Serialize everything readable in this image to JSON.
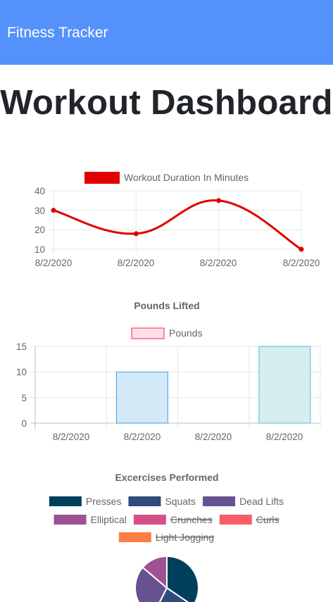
{
  "navbar": {
    "brand": "Fitness Tracker"
  },
  "page": {
    "title": "Workout Dashboard"
  },
  "colors": {
    "navbar": "#5591fb",
    "duration_line": "#e00000",
    "pounds_border": "#4bc0c0",
    "pounds_fill": "#d5eef2",
    "pounds_alt_border": "#36a2eb",
    "pounds_alt_fill": "#d4e9f8",
    "pounds_legend_border": "#ff6384",
    "pounds_legend_fill": "#ffe0e6"
  },
  "chart_data": [
    {
      "type": "line",
      "title": "",
      "x": [
        "8/2/2020",
        "8/2/2020",
        "8/2/2020",
        "8/2/2020"
      ],
      "series": [
        {
          "name": "Workout Duration In Minutes",
          "values": [
            30,
            18,
            35,
            10
          ]
        }
      ],
      "yticks": [
        40,
        30,
        20,
        10
      ],
      "ylim": [
        10,
        40
      ],
      "grid": true,
      "legend": "top"
    },
    {
      "type": "bar",
      "title": "Pounds Lifted",
      "categories": [
        "8/2/2020",
        "8/2/2020",
        "8/2/2020",
        "8/2/2020"
      ],
      "series": [
        {
          "name": "Pounds",
          "values": [
            0,
            10,
            0,
            15
          ]
        }
      ],
      "yticks": [
        15,
        10,
        5,
        0
      ],
      "ylim": [
        0,
        15
      ],
      "grid": true,
      "legend": "top"
    },
    {
      "type": "pie",
      "title": "Excercises Performed",
      "legend": "top",
      "labels": [
        {
          "name": "Presses",
          "color": "#003f5c",
          "hidden": false
        },
        {
          "name": "Squats",
          "color": "#2f4b7c",
          "hidden": false
        },
        {
          "name": "Dead Lifts",
          "color": "#665191",
          "hidden": false
        },
        {
          "name": "Elliptical",
          "color": "#a05195",
          "hidden": false
        },
        {
          "name": "Crunches",
          "color": "#d45087",
          "hidden": true
        },
        {
          "name": "Curls",
          "color": "#f95d6a",
          "hidden": true
        },
        {
          "name": "Light Jogging",
          "color": "#ff7c43",
          "hidden": true
        }
      ],
      "values": [
        30,
        20,
        25,
        12,
        0,
        0,
        0
      ]
    }
  ]
}
